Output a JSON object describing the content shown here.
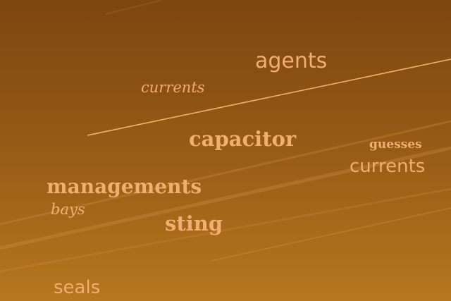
{
  "words": {
    "agents": "agents",
    "currents_script": "currents",
    "capacitor": "capacitor",
    "guesses": "guesses",
    "currents": "currents",
    "managements": "managements",
    "bays": "bays",
    "sting": "sting",
    "seals": "seals"
  },
  "colors": {
    "sky_top": "#7e4610",
    "sky_bottom": "#b5781f",
    "text": "#f0ae70",
    "contrail": "#f2b66e"
  }
}
